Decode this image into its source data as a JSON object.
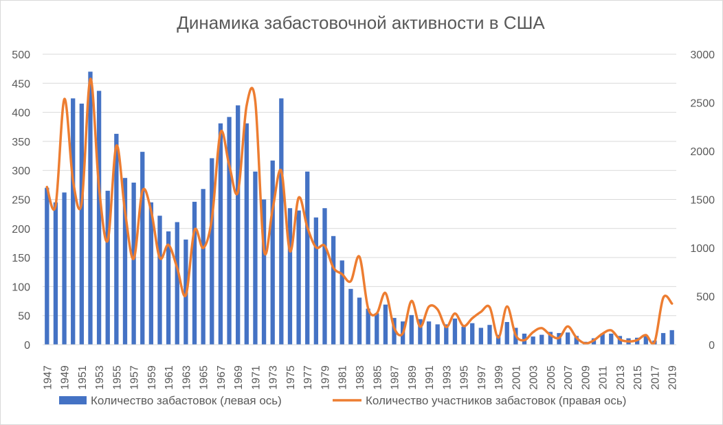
{
  "chart_data": {
    "type": "bar+line",
    "title": "Динамика забастовочной активности в США",
    "x": [
      1947,
      1948,
      1949,
      1950,
      1951,
      1952,
      1953,
      1954,
      1955,
      1956,
      1957,
      1958,
      1959,
      1960,
      1961,
      1962,
      1963,
      1964,
      1965,
      1966,
      1967,
      1968,
      1969,
      1970,
      1971,
      1972,
      1973,
      1974,
      1975,
      1976,
      1977,
      1978,
      1979,
      1980,
      1981,
      1982,
      1983,
      1984,
      1985,
      1986,
      1987,
      1988,
      1989,
      1990,
      1991,
      1992,
      1993,
      1994,
      1995,
      1996,
      1997,
      1998,
      1999,
      2000,
      2001,
      2002,
      2003,
      2004,
      2005,
      2006,
      2007,
      2008,
      2009,
      2010,
      2011,
      2012,
      2013,
      2014,
      2015,
      2016,
      2017,
      2018,
      2019
    ],
    "x_tick_labels": [
      "1947",
      "1949",
      "1951",
      "1953",
      "1955",
      "1957",
      "1959",
      "1961",
      "1963",
      "1965",
      "1967",
      "1969",
      "1971",
      "1973",
      "1975",
      "1977",
      "1979",
      "1981",
      "1983",
      "1985",
      "1987",
      "1989",
      "1991",
      "1993",
      "1995",
      "1997",
      "1999",
      "2001",
      "2003",
      "2005",
      "2007",
      "2009",
      "2011",
      "2013",
      "2015",
      "2017",
      "2019"
    ],
    "y_left": {
      "range": [
        0,
        500
      ],
      "ticks": [
        "0",
        "50",
        "100",
        "150",
        "200",
        "250",
        "300",
        "350",
        "400",
        "450",
        "500"
      ]
    },
    "y_right": {
      "range": [
        0,
        3000
      ],
      "ticks": [
        "0",
        "500",
        "1000",
        "1500",
        "2000",
        "2500",
        "3000"
      ]
    },
    "grid": "horizontal",
    "legend_position": "bottom",
    "series": [
      {
        "name": "Количество забастовок (левая ось)",
        "type": "bar",
        "axis": "left",
        "color": "#4472c4",
        "values": [
          270,
          245,
          262,
          424,
          415,
          470,
          437,
          265,
          363,
          287,
          279,
          332,
          245,
          222,
          195,
          211,
          181,
          246,
          268,
          321,
          381,
          392,
          412,
          381,
          298,
          250,
          317,
          424,
          235,
          231,
          298,
          219,
          235,
          187,
          145,
          96,
          81,
          62,
          54,
          69,
          46,
          40,
          51,
          44,
          40,
          35,
          35,
          45,
          31,
          37,
          29,
          34,
          17,
          39,
          29,
          19,
          14,
          17,
          22,
          20,
          21,
          15,
          5,
          11,
          19,
          19,
          15,
          11,
          12,
          15,
          7,
          20,
          25
        ]
      },
      {
        "name": "Количество участников забастовок (правая ось)",
        "type": "line",
        "axis": "right",
        "color": "#ed7d31",
        "values": [
          1629,
          1435,
          2537,
          1698,
          1462,
          2746,
          1623,
          1075,
          2055,
          1370,
          887,
          1587,
          1381,
          896,
          1031,
          793,
          512,
          1183,
          999,
          1300,
          2192,
          1855,
          1576,
          2468,
          2516,
          975,
          1400,
          1796,
          965,
          1519,
          1212,
          1006,
          1021,
          795,
          729,
          656,
          909,
          376,
          324,
          533,
          174,
          118,
          452,
          185,
          392,
          364,
          182,
          322,
          192,
          273,
          339,
          387,
          73,
          394,
          99,
          46,
          129,
          171,
          100,
          70,
          189,
          72,
          13,
          45,
          113,
          148,
          55,
          34,
          47,
          99,
          25,
          485,
          425
        ]
      }
    ]
  }
}
